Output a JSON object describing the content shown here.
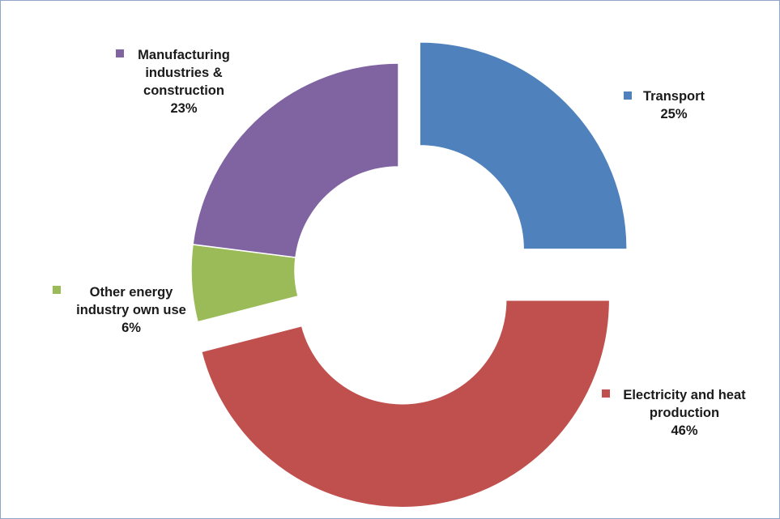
{
  "chart_data": {
    "type": "pie",
    "variant": "doughnut",
    "title": "",
    "legend": "none",
    "colors": {
      "transport": "#4f81bd",
      "electricity": "#c0504d",
      "other_energy": "#9bbb59",
      "manufacturing": "#8064a2"
    },
    "slices": [
      {
        "key": "transport",
        "value": 25,
        "pct_label": "25%",
        "label_lines": [
          "Transport"
        ],
        "exploded": true
      },
      {
        "key": "electricity",
        "value": 46,
        "pct_label": "46%",
        "label_lines": [
          "Electricity and heat",
          "production"
        ],
        "exploded": true
      },
      {
        "key": "other_energy",
        "value": 6,
        "pct_label": "6%",
        "label_lines": [
          "Other energy",
          "industry own use"
        ],
        "exploded": false
      },
      {
        "key": "manufacturing",
        "value": 23,
        "pct_label": "23%",
        "label_lines": [
          "Manufacturing",
          "industries &",
          "construction"
        ],
        "exploded": false
      }
    ]
  }
}
